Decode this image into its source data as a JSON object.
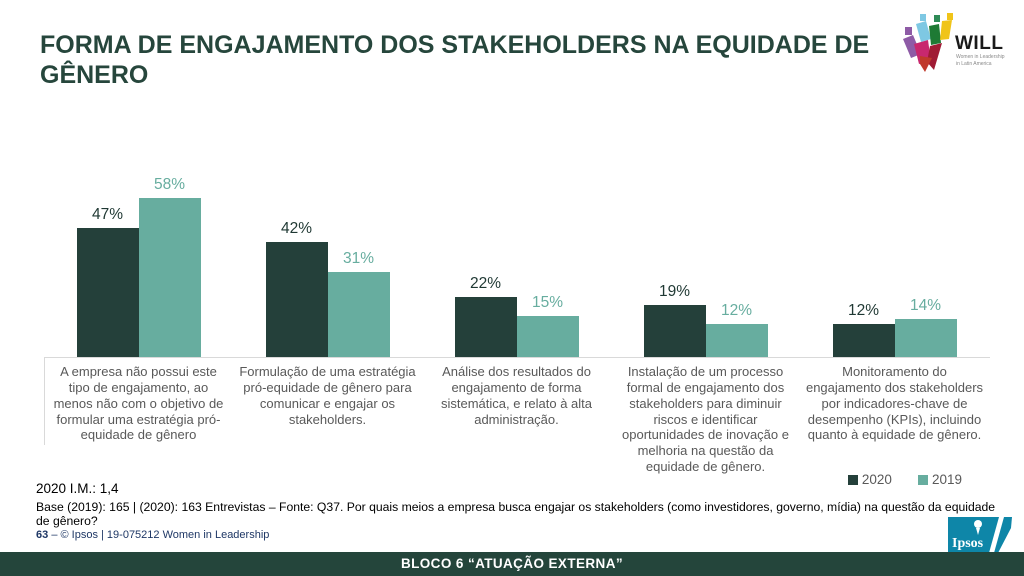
{
  "slide": {
    "title": "FORMA DE ENGAJAMENTO DOS STAKEHOLDERS NA EQUIDADE DE GÊNERO",
    "will": {
      "name": "WILL",
      "tagline_line1": "Women in Leadership",
      "tagline_line2": "in Latin America"
    }
  },
  "chart_data": {
    "type": "bar",
    "categories": [
      "A empresa não possui este tipo de engajamento, ao menos não com o objetivo de formular uma estratégia pró-equidade de gênero",
      "Formulação de uma estratégia pró-equidade de gênero para comunicar e engajar os stakeholders.",
      "Análise dos resultados do engajamento de forma sistemática, e relato à alta administração.",
      "Instalação de um processo formal de engajamento dos stakeholders para diminuir riscos e identificar oportunidades de inovação e melhoria na questão da equidade de gênero.",
      "Monitoramento do engajamento dos stakeholders por indicadores-chave de desempenho (KPIs), incluindo quanto à equidade de gênero."
    ],
    "series": [
      {
        "name": "2020",
        "values": [
          47,
          42,
          22,
          19,
          12
        ],
        "color": "#24403a",
        "label_color": "#1f3833"
      },
      {
        "name": "2019",
        "values": [
          58,
          31,
          15,
          12,
          14
        ],
        "color": "#67ad9f",
        "label_color": "#67ad9f"
      }
    ],
    "value_suffix": "%",
    "title": "FORMA DE ENGAJAMENTO DOS STAKEHOLDERS NA EQUIDADE DE GÊNERO",
    "xlabel": "",
    "ylabel": "",
    "ylim": [
      0,
      70
    ],
    "grid": false,
    "legend_position": "bottom-right"
  },
  "notes": {
    "im_label": "2020 I.M.: 1,4",
    "base": "Base (2019): 165 | (2020): 163 Entrevistas – Fonte: Q37.  Por quais meios a empresa busca engajar os stakeholders (como investidores, governo, mídia) na questão da equidade de gênero?"
  },
  "footer": {
    "page_number": "63",
    "separator": "–",
    "copyright": "© Ipsos | 19-075212 Women in Leadership",
    "band_text": "BLOCO 6 “ATUAÇÃO EXTERNA”",
    "ipsos_logo_text": "Ipsos"
  }
}
